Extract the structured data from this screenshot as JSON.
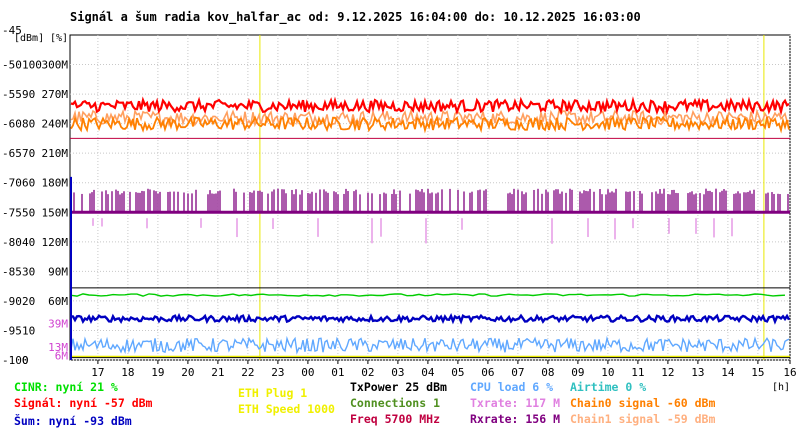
{
  "chart_data": {
    "type": "line",
    "title": "Signál a šum radia kov_halfar_ac od: 9.12.2025 16:04:00 do: 10.12.2025 16:03:00",
    "y_unit_labels": [
      "[dBm]",
      "[%]"
    ],
    "y_top_label": "-45",
    "y_left_ticks": [
      "-50",
      "-55",
      "-60",
      "-65",
      "-70",
      "-75",
      "-80",
      "-85",
      "-90",
      "-95",
      "-100"
    ],
    "y_pct_ticks": [
      "100",
      "90",
      "80",
      "70",
      "60",
      "50",
      "40",
      "30",
      "20",
      "10",
      "0"
    ],
    "y_rate_ticks": [
      "300M",
      "270M",
      "240M",
      "210M",
      "180M",
      "150M",
      "120M",
      "90M",
      "60M",
      "39M",
      "13M",
      "6M"
    ],
    "ylim": [
      -100,
      -45
    ],
    "x_ticks": [
      "17",
      "18",
      "19",
      "20",
      "21",
      "22",
      "23",
      "00",
      "01",
      "02",
      "03",
      "04",
      "05",
      "06",
      "07",
      "08",
      "09",
      "10",
      "11",
      "12",
      "13",
      "14",
      "15",
      "16"
    ],
    "x_unit": "[h]",
    "grid": true,
    "series": [
      {
        "key": "signal",
        "color": "#ff0000",
        "base": -57,
        "spread": 1.0
      },
      {
        "key": "chain1",
        "color": "#ffa060",
        "base": -59,
        "spread": 1.2
      },
      {
        "key": "chain0",
        "color": "#ff8000",
        "base": -60,
        "spread": 1.1
      },
      {
        "key": "freq",
        "color": "#c00040",
        "base": -62.5,
        "spread": 0
      },
      {
        "key": "rxrate",
        "color": "#800080",
        "base_low": -75,
        "base_high": -71
      },
      {
        "key": "txrate",
        "color": "#e080e0",
        "base": -76,
        "spread": 0.6
      },
      {
        "key": "cinr",
        "color": "#00cc00",
        "base": -89,
        "spread": 0.2
      },
      {
        "key": "noise",
        "color": "#0000c0",
        "base": -93,
        "spread": 0.5
      },
      {
        "key": "cpu",
        "color": "#60a8ff",
        "base": -97.5,
        "spread": 1.2
      },
      {
        "key": "ethplug",
        "color": "#e8e800",
        "base": -99.4,
        "spread": 0
      }
    ],
    "marker_lines_hours": [
      22.4,
      15.2
    ]
  },
  "legend": {
    "cinr": {
      "text": "CINR: nyní 21 %",
      "color": "#00e000"
    },
    "signal": {
      "text": "Signál: nyní -57 dBm",
      "color": "#ff0000"
    },
    "noise": {
      "text": "Šum: nyní -93 dBm",
      "color": "#0000c0"
    },
    "ethplug": {
      "text": "ETH Plug 1",
      "color": "#f0f000"
    },
    "ethspeed": {
      "text": "ETH Speed 1000",
      "color": "#f0f000"
    },
    "txpower": {
      "text": "TxPower 25 dBm",
      "color": "#000000"
    },
    "connections": {
      "text": "Connections 1",
      "color": "#509020"
    },
    "freq": {
      "text": "Freq 5700 MHz",
      "color": "#c00040"
    },
    "cpu": {
      "text": "CPU load 6 %",
      "color": "#60a8ff"
    },
    "txrate": {
      "text": "Txrate: 117 M",
      "color": "#e080e0"
    },
    "rxrate": {
      "text": "Rxrate: 156 M",
      "color": "#800080"
    },
    "airtime": {
      "text": "Airtime 0 %",
      "color": "#30c0c0"
    },
    "chain0": {
      "text": "Chain0 signal -60 dBm",
      "color": "#ff8000"
    },
    "chain1": {
      "text": "Chain1 signal -59 dBm",
      "color": "#ffb080"
    }
  }
}
